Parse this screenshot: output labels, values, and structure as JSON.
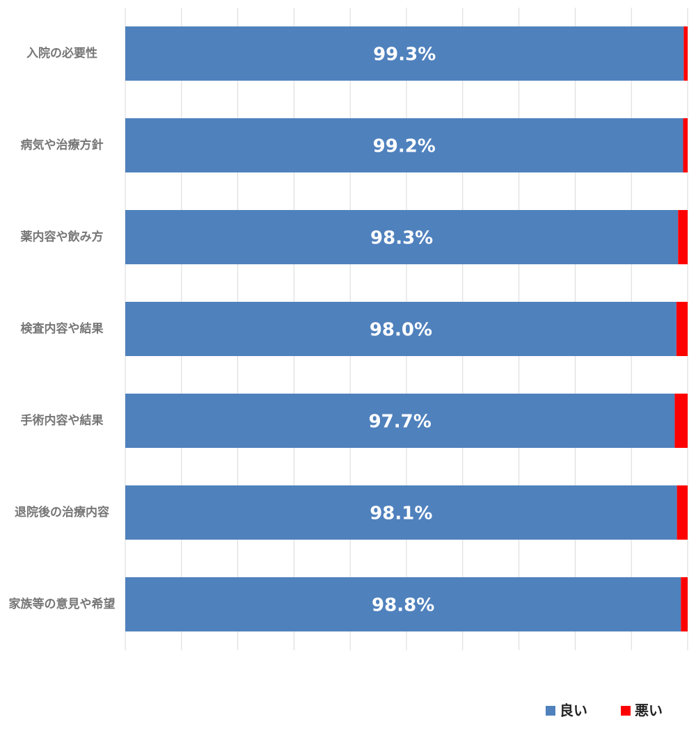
{
  "chart_data": {
    "type": "stacked_bar_horizontal",
    "categories": [
      "入院の必要性",
      "病気や治療方針",
      "薬内容や飲み方",
      "検査内容や結果",
      "手術内容や結果",
      "退院後の治療内容",
      "家族等の意見や希望"
    ],
    "series": [
      {
        "name": "良い",
        "color": "#4f81bd",
        "values": [
          99.3,
          99.2,
          98.3,
          98.0,
          97.7,
          98.1,
          98.8
        ],
        "value_labels": [
          "99.3%",
          "99.2%",
          "98.3%",
          "98.0%",
          "97.7%",
          "98.1%",
          "98.8%"
        ]
      },
      {
        "name": "悪い",
        "color": "#ff0000",
        "values": [
          0.7,
          0.8,
          1.7,
          2.0,
          2.3,
          1.9,
          1.2
        ]
      }
    ],
    "xlim": [
      0,
      100
    ],
    "xticks": [
      0,
      10,
      20,
      30,
      40,
      50,
      60,
      70,
      80,
      90,
      100
    ],
    "grid": true,
    "legend": "bottom-right"
  }
}
